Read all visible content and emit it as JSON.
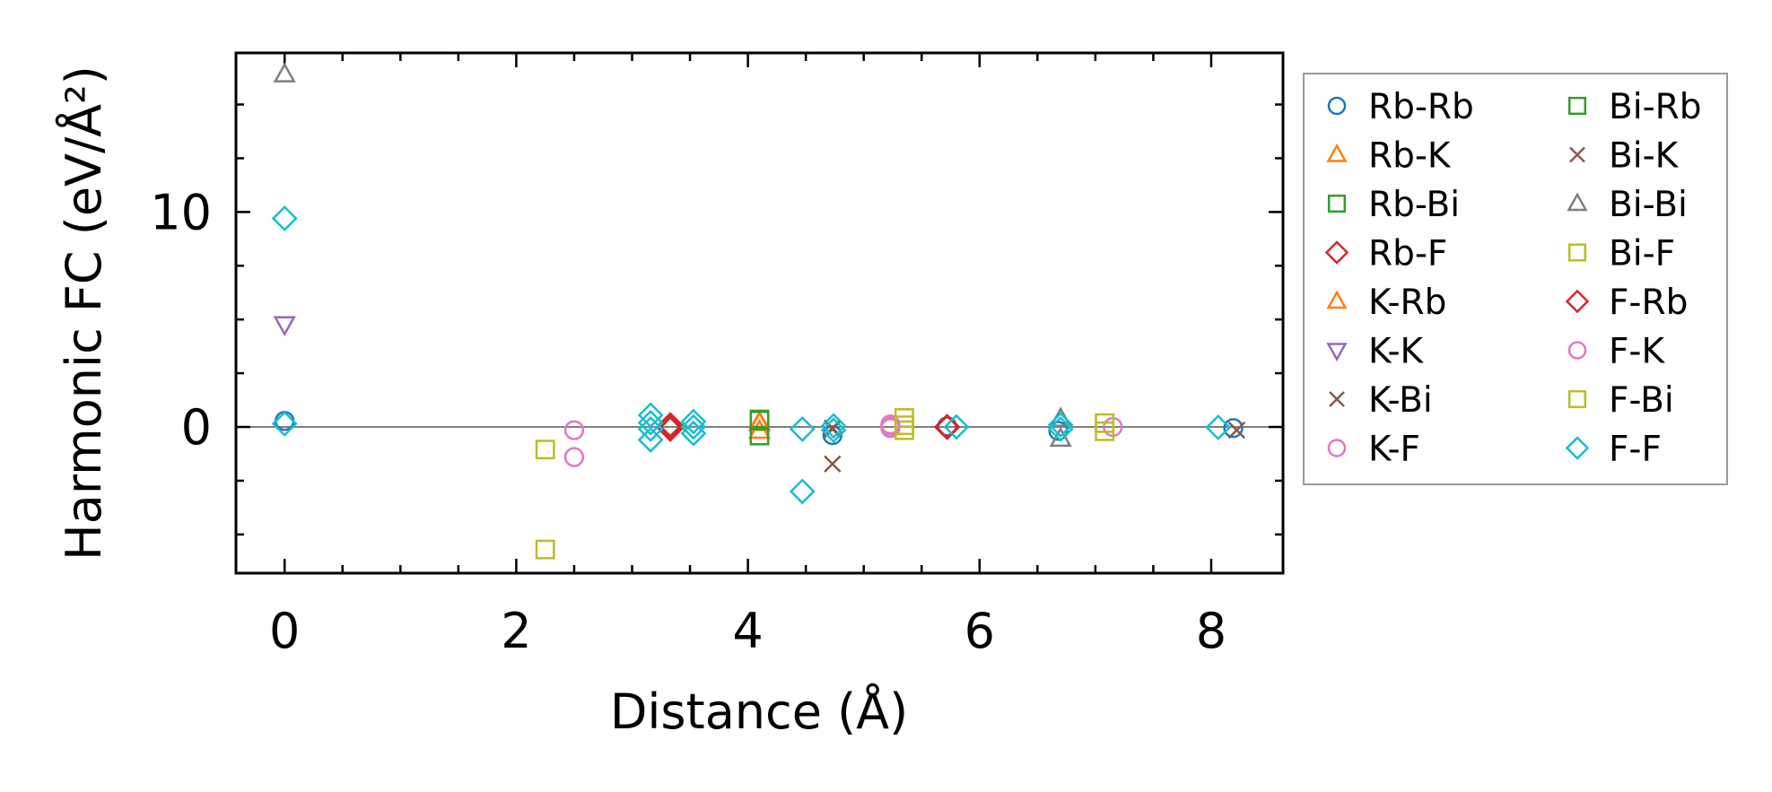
{
  "chart_data": {
    "type": "scatter",
    "xlabel": "Distance (Å)",
    "ylabel": "Harmonic FC (eV/Å²)",
    "xlim": [
      -0.42,
      8.62
    ],
    "ylim": [
      -6.8,
      17.4
    ],
    "x_ticks": [
      0,
      2,
      4,
      6,
      8
    ],
    "y_ticks": [
      0,
      10
    ],
    "x_tick_labels": [
      "0",
      "2",
      "4",
      "6",
      "8"
    ],
    "y_tick_labels": [
      "0",
      "10"
    ],
    "reference_line_y": 0,
    "legend_position": "outside-right",
    "legend_columns": 2,
    "series": [
      {
        "name": "Rb-Rb",
        "marker": "circle",
        "color": "#1f77b4",
        "x": [
          0,
          3.33,
          4.73,
          5.72,
          6.68,
          8.19
        ],
        "y": [
          0.28,
          0.02,
          -0.38,
          0.03,
          -0.18,
          -0.05
        ]
      },
      {
        "name": "Rb-K",
        "marker": "triangle-up",
        "color": "#ff7f0e",
        "x": [
          4.1,
          4.1
        ],
        "y": [
          0.18,
          -0.18
        ]
      },
      {
        "name": "Rb-Bi",
        "marker": "square",
        "color": "#2ca02c",
        "x": [
          4.1,
          4.1
        ],
        "y": [
          0.35,
          -0.4
        ]
      },
      {
        "name": "Rb-F",
        "marker": "diamond",
        "color": "#d62728",
        "x": [
          3.33,
          3.33,
          5.72
        ],
        "y": [
          0.1,
          -0.1,
          0.02
        ]
      },
      {
        "name": "K-Rb",
        "marker": "triangle-up",
        "color": "#ff7f0e",
        "x": [
          4.1
        ],
        "y": [
          0.22
        ]
      },
      {
        "name": "K-K",
        "marker": "triangle-down",
        "color": "#9467bd",
        "x": [
          0
        ],
        "y": [
          4.78
        ]
      },
      {
        "name": "K-Bi",
        "marker": "x",
        "color": "#8c564b",
        "x": [
          4.73,
          4.73,
          8.22
        ],
        "y": [
          -1.72,
          -0.1,
          -0.15
        ]
      },
      {
        "name": "K-F",
        "marker": "circle",
        "color": "#e377c2",
        "x": [
          2.5,
          2.5,
          5.23,
          5.23,
          7.15
        ],
        "y": [
          -1.4,
          -0.15,
          0.12,
          -0.05,
          0.0
        ]
      },
      {
        "name": "Bi-Rb",
        "marker": "square",
        "color": "#2ca02c",
        "x": [
          4.1
        ],
        "y": [
          0.3
        ]
      },
      {
        "name": "Bi-K",
        "marker": "x",
        "color": "#8c564b",
        "x": [
          4.73
        ],
        "y": [
          -0.05
        ]
      },
      {
        "name": "Bi-Bi",
        "marker": "triangle-up",
        "color": "#7f7f7f",
        "x": [
          0,
          6.7,
          6.7
        ],
        "y": [
          16.4,
          0.38,
          -0.55
        ]
      },
      {
        "name": "Bi-F",
        "marker": "square",
        "color": "#bcbd22",
        "x": [
          2.25,
          2.25,
          5.35,
          5.35,
          7.08,
          7.08
        ],
        "y": [
          -5.7,
          -1.05,
          0.42,
          -0.15,
          0.18,
          -0.2
        ]
      },
      {
        "name": "F-Rb",
        "marker": "diamond",
        "color": "#d62728",
        "x": [
          3.33,
          5.72
        ],
        "y": [
          0.0,
          -0.02
        ]
      },
      {
        "name": "F-K",
        "marker": "circle",
        "color": "#e377c2",
        "x": [
          5.23
        ],
        "y": [
          0.02
        ]
      },
      {
        "name": "F-Bi",
        "marker": "square",
        "color": "#bcbd22",
        "x": [
          5.35
        ],
        "y": [
          0.08
        ]
      },
      {
        "name": "F-F",
        "marker": "diamond",
        "color": "#17becf",
        "x": [
          0,
          0,
          3.16,
          3.16,
          3.16,
          3.16,
          3.53,
          3.53,
          3.53,
          4.47,
          4.47,
          4.74,
          4.74,
          5.8,
          6.7,
          6.7,
          8.06
        ],
        "y": [
          9.7,
          0.15,
          0.55,
          0.2,
          -0.1,
          -0.6,
          0.25,
          0.0,
          -0.3,
          -3.0,
          -0.1,
          0.05,
          -0.15,
          0.0,
          0.1,
          -0.1,
          -0.02
        ]
      }
    ]
  }
}
